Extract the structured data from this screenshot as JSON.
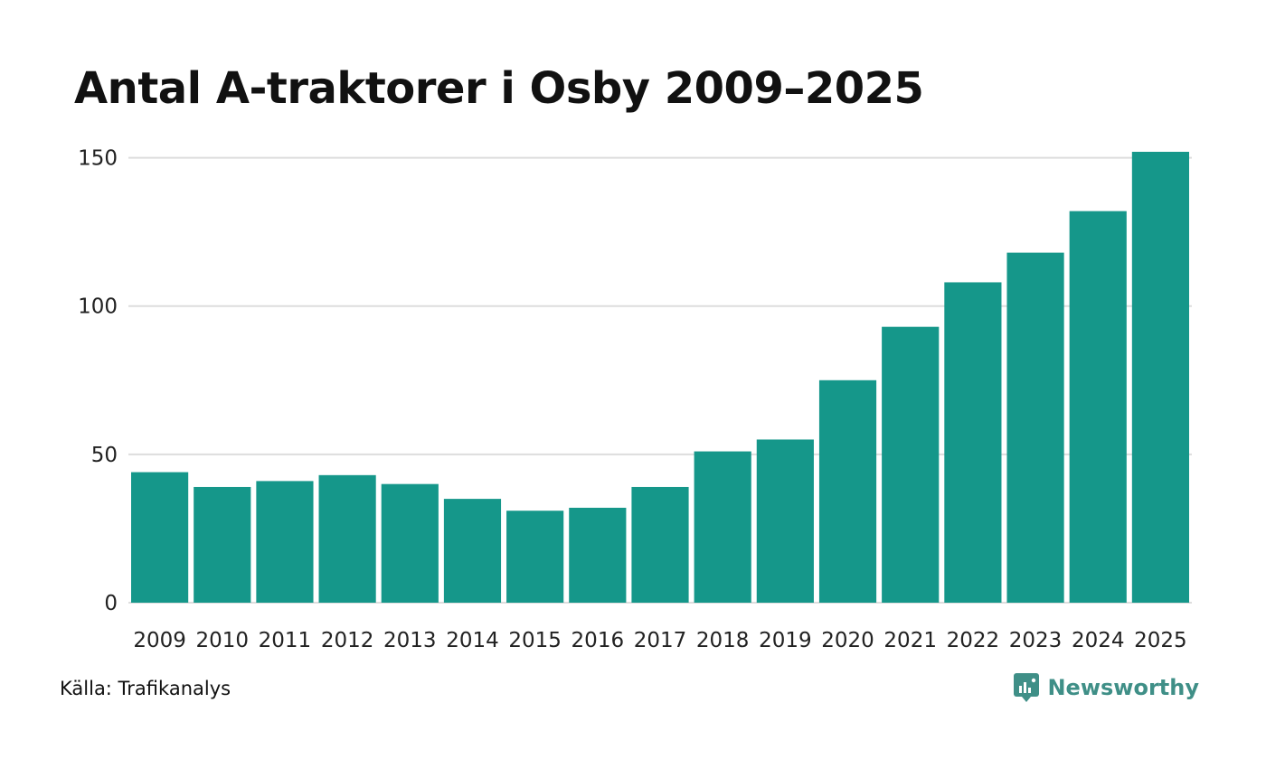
{
  "title": "Antal A-traktorer i Osby 2009–2025",
  "source": "Källa: Trafikanalys",
  "brand": "Newsworthy",
  "colors": {
    "bar": "#15978a",
    "grid": "#dddddd",
    "brand": "#3f8f87"
  },
  "chart_data": {
    "type": "bar",
    "title": "Antal A-traktorer i Osby 2009–2025",
    "xlabel": "",
    "ylabel": "",
    "categories": [
      "2009",
      "2010",
      "2011",
      "2012",
      "2013",
      "2014",
      "2015",
      "2016",
      "2017",
      "2018",
      "2019",
      "2020",
      "2021",
      "2022",
      "2023",
      "2024",
      "2025"
    ],
    "values": [
      44,
      39,
      41,
      43,
      40,
      35,
      31,
      32,
      39,
      51,
      55,
      75,
      93,
      108,
      118,
      132,
      152
    ],
    "yticks": [
      0,
      50,
      100,
      150
    ],
    "ylim": [
      0,
      152
    ],
    "grid": true
  }
}
